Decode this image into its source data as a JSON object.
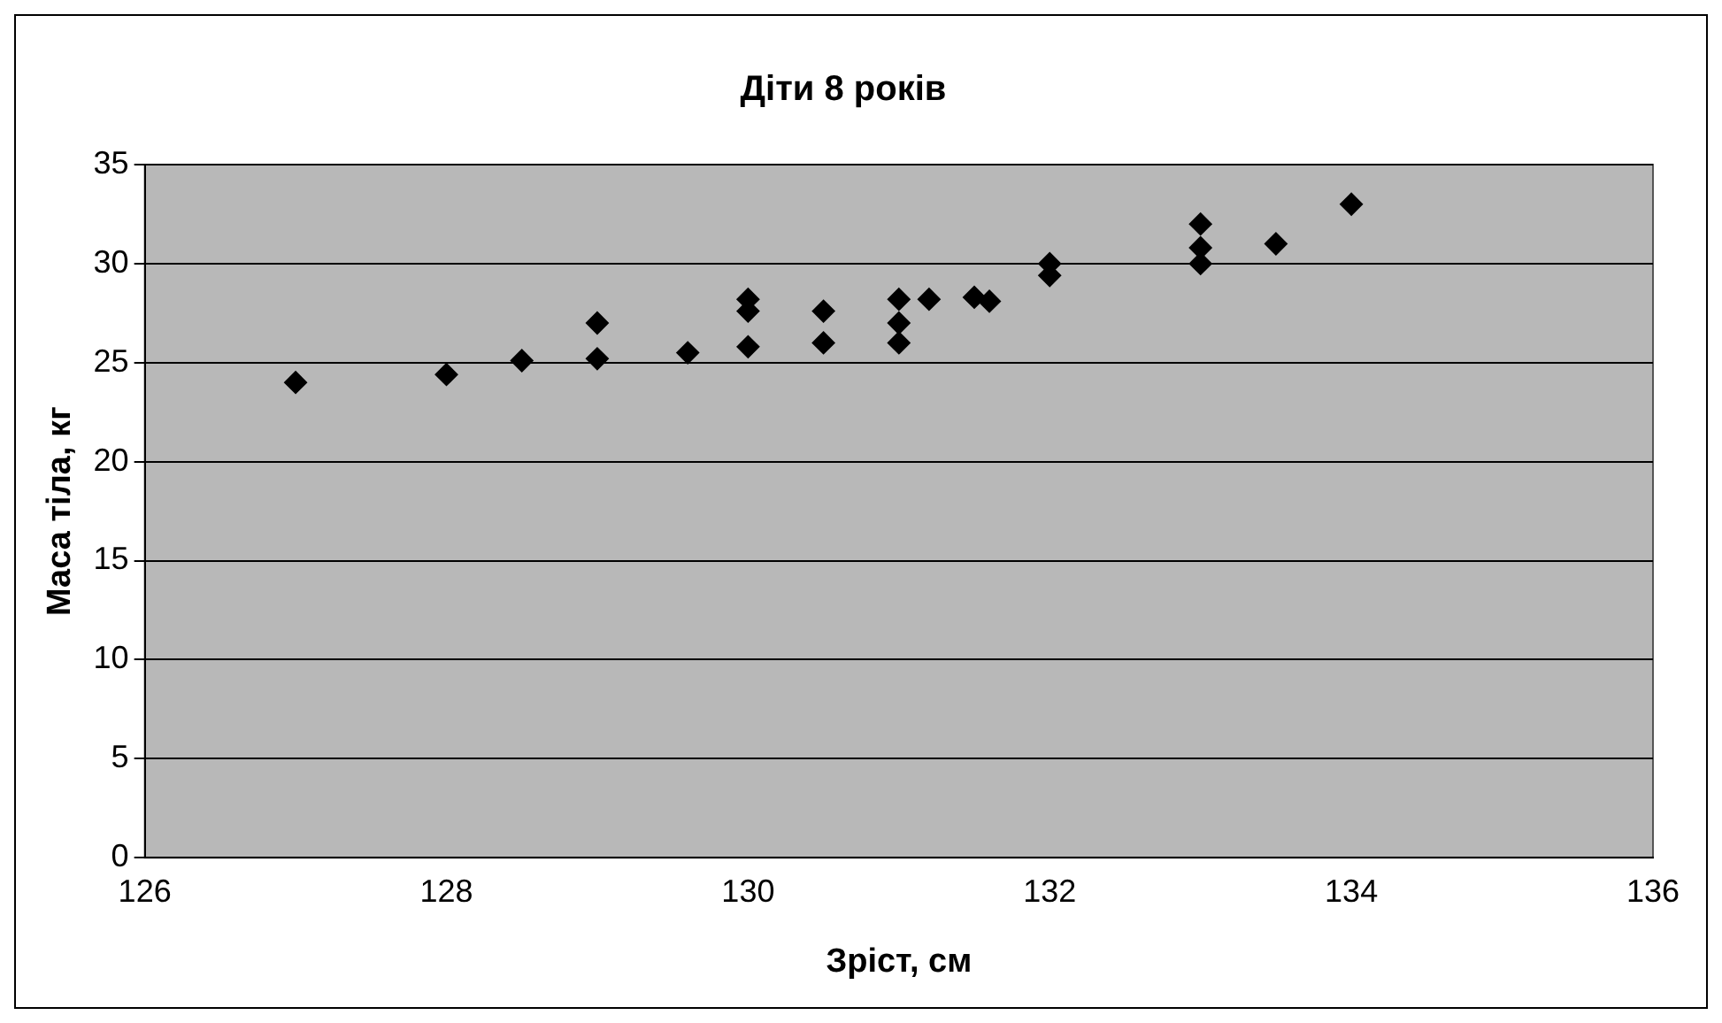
{
  "chart_data": {
    "type": "scatter",
    "title": "Діти 8 років",
    "xlabel": "Зріст, см",
    "ylabel": "Маса тіла, кг",
    "x": [
      127,
      128,
      128.5,
      129,
      129,
      129.6,
      130,
      130,
      130,
      130.5,
      130.5,
      131,
      131,
      131,
      131.2,
      131.5,
      131.6,
      132,
      132,
      133,
      133,
      133,
      133.5,
      134
    ],
    "series": [
      {
        "color": "#000000",
        "values": [
          24,
          24.4,
          25.1,
          27,
          25.2,
          25.5,
          28.2,
          27.6,
          25.8,
          27.6,
          26,
          28.2,
          27,
          26,
          28.2,
          28.3,
          28.1,
          30,
          29.4,
          32,
          30.8,
          30,
          31,
          33
        ]
      }
    ],
    "xlim": [
      126,
      136
    ],
    "xticks": [
      126,
      128,
      130,
      132,
      134,
      136
    ],
    "ylim": [
      0,
      35
    ],
    "yticks": [
      0,
      5,
      10,
      15,
      20,
      25,
      30,
      35
    ],
    "grid": "y",
    "legend": false,
    "marker": "diamond"
  }
}
